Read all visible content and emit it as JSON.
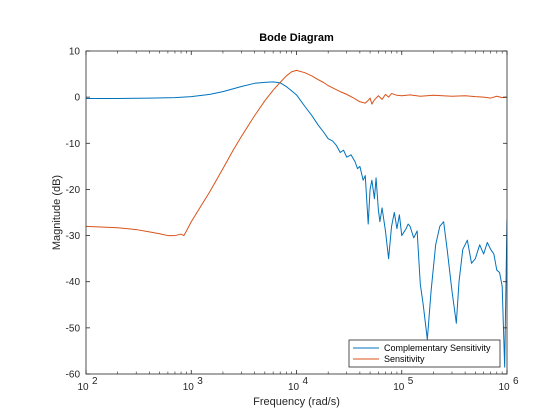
{
  "chart_data": {
    "type": "line",
    "title": "Bode Diagram",
    "xlabel": "Frequency  (rad/s)",
    "ylabel": "Magnitude (dB)",
    "xscale": "log",
    "xlim": [
      100,
      1000000
    ],
    "ylim": [
      -60,
      10
    ],
    "xticks": [
      100,
      1000,
      10000,
      100000,
      1000000
    ],
    "xtick_labels": [
      {
        "base": "10",
        "exp": "2"
      },
      {
        "base": "10",
        "exp": "3"
      },
      {
        "base": "10",
        "exp": "4"
      },
      {
        "base": "10",
        "exp": "5"
      },
      {
        "base": "10",
        "exp": "6"
      }
    ],
    "yticks": [
      10,
      0,
      -10,
      -20,
      -30,
      -40,
      -50,
      -60
    ],
    "ytick_labels": [
      "10",
      "0",
      "-10",
      "-20",
      "-30",
      "-40",
      "-50",
      "-60"
    ],
    "grid": false,
    "legend_location": "bottom-right",
    "series": [
      {
        "name": "Complementary Sensitivity",
        "color": "#0072BD",
        "points": [
          [
            100,
            -0.3
          ],
          [
            200,
            -0.3
          ],
          [
            400,
            -0.2
          ],
          [
            700,
            -0.1
          ],
          [
            1000,
            0.1
          ],
          [
            1500,
            0.6
          ],
          [
            2000,
            1.2
          ],
          [
            3000,
            2.3
          ],
          [
            4000,
            3.0
          ],
          [
            5000,
            3.2
          ],
          [
            6000,
            3.3
          ],
          [
            7000,
            3.1
          ],
          [
            8000,
            2.3
          ],
          [
            10000,
            0.5
          ],
          [
            12000,
            -2.0
          ],
          [
            14000,
            -4.0
          ],
          [
            16000,
            -6.0
          ],
          [
            18000,
            -7.5
          ],
          [
            20000,
            -9.0
          ],
          [
            22000,
            -9.5
          ],
          [
            24000,
            -10.5
          ],
          [
            26000,
            -12.0
          ],
          [
            28000,
            -11.5
          ],
          [
            30000,
            -13.0
          ],
          [
            33000,
            -12.5
          ],
          [
            36000,
            -14.0
          ],
          [
            38000,
            -15.5
          ],
          [
            40000,
            -15.0
          ],
          [
            43000,
            -18.0
          ],
          [
            45000,
            -17.0
          ],
          [
            48000,
            -27.5
          ],
          [
            50000,
            -20.0
          ],
          [
            52000,
            -18.0
          ],
          [
            55000,
            -22.0
          ],
          [
            57000,
            -17.5
          ],
          [
            60000,
            -24.5
          ],
          [
            62000,
            -27.0
          ],
          [
            65000,
            -24.0
          ],
          [
            70000,
            -29.0
          ],
          [
            75000,
            -35.0
          ],
          [
            80000,
            -28.0
          ],
          [
            85000,
            -25.0
          ],
          [
            90000,
            -28.5
          ],
          [
            95000,
            -25.5
          ],
          [
            100000,
            -30.0
          ],
          [
            110000,
            -28.5
          ],
          [
            115000,
            -27.5
          ],
          [
            120000,
            -28.0
          ],
          [
            130000,
            -30.5
          ],
          [
            140000,
            -29.0
          ],
          [
            150000,
            -40.5
          ],
          [
            160000,
            -45.0
          ],
          [
            175000,
            -52.5
          ],
          [
            190000,
            -42.0
          ],
          [
            210000,
            -32.0
          ],
          [
            230000,
            -28.0
          ],
          [
            250000,
            -27.0
          ],
          [
            270000,
            -33.0
          ],
          [
            300000,
            -42.0
          ],
          [
            330000,
            -49.0
          ],
          [
            350000,
            -40.0
          ],
          [
            380000,
            -33.0
          ],
          [
            420000,
            -31.0
          ],
          [
            460000,
            -36.0
          ],
          [
            500000,
            -35.0
          ],
          [
            550000,
            -32.0
          ],
          [
            600000,
            -34.0
          ],
          [
            650000,
            -31.5
          ],
          [
            700000,
            -33.0
          ],
          [
            750000,
            -34.0
          ],
          [
            800000,
            -37.5
          ],
          [
            850000,
            -38.0
          ],
          [
            900000,
            -41.0
          ],
          [
            950000,
            -58.5
          ],
          [
            1000000,
            -26.5
          ]
        ]
      },
      {
        "name": "Sensitivity",
        "color": "#D95319",
        "points": [
          [
            100,
            -28.0
          ],
          [
            200,
            -28.3
          ],
          [
            300,
            -28.7
          ],
          [
            400,
            -29.2
          ],
          [
            500,
            -29.6
          ],
          [
            600,
            -30.0
          ],
          [
            700,
            -30.0
          ],
          [
            800,
            -29.7
          ],
          [
            850,
            -30.0
          ],
          [
            900,
            -29.0
          ],
          [
            1000,
            -27.0
          ],
          [
            1500,
            -20.5
          ],
          [
            2000,
            -15.5
          ],
          [
            2500,
            -11.5
          ],
          [
            3000,
            -8.5
          ],
          [
            4000,
            -4.0
          ],
          [
            5000,
            -0.8
          ],
          [
            6000,
            1.5
          ],
          [
            7000,
            3.2
          ],
          [
            8000,
            4.6
          ],
          [
            9000,
            5.5
          ],
          [
            10000,
            5.8
          ],
          [
            12000,
            5.3
          ],
          [
            14000,
            4.6
          ],
          [
            16000,
            3.8
          ],
          [
            18000,
            3.2
          ],
          [
            20000,
            2.5
          ],
          [
            23000,
            1.8
          ],
          [
            26000,
            1.2
          ],
          [
            30000,
            0.6
          ],
          [
            35000,
            -0.2
          ],
          [
            40000,
            -1.0
          ],
          [
            45000,
            -1.3
          ],
          [
            48000,
            -0.7
          ],
          [
            50000,
            -0.2
          ],
          [
            52000,
            -1.5
          ],
          [
            55000,
            -0.6
          ],
          [
            60000,
            0.3
          ],
          [
            65000,
            -0.5
          ],
          [
            70000,
            0.6
          ],
          [
            75000,
            0.0
          ],
          [
            80000,
            0.8
          ],
          [
            90000,
            0.4
          ],
          [
            100000,
            0.3
          ],
          [
            120000,
            0.5
          ],
          [
            150000,
            0.2
          ],
          [
            200000,
            0.4
          ],
          [
            300000,
            0.2
          ],
          [
            400000,
            0.3
          ],
          [
            500000,
            0.1
          ],
          [
            600000,
            0.0
          ],
          [
            700000,
            -0.2
          ],
          [
            800000,
            0.2
          ],
          [
            900000,
            -0.1
          ],
          [
            1000000,
            0.0
          ]
        ]
      }
    ]
  }
}
